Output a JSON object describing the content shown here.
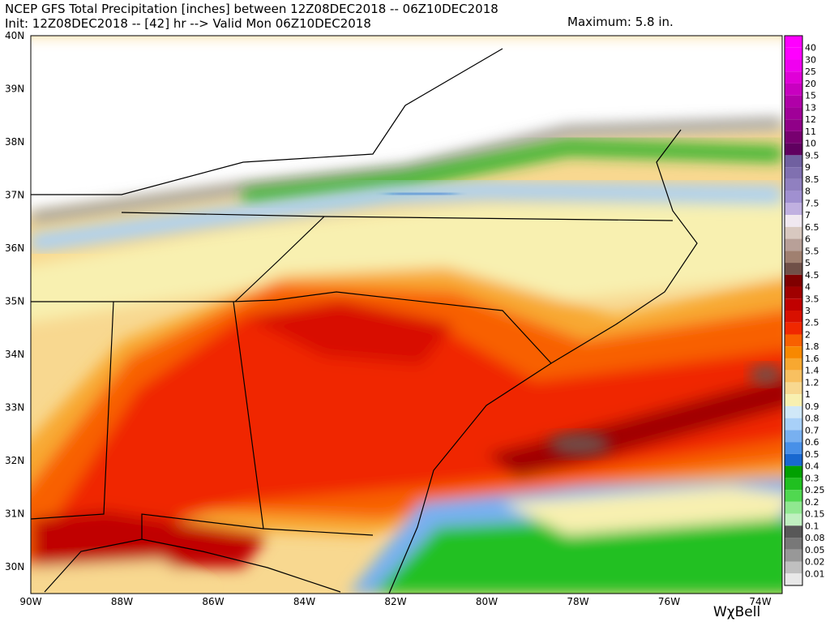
{
  "header": {
    "title": "NCEP GFS Total Precipitation [inches] between 12Z08DEC2018 -- 06Z10DEC2018",
    "subtitle": "Init: 12Z08DEC2018 -- [42] hr --> Valid Mon 06Z10DEC2018",
    "maximum": "Maximum: 5.8 in."
  },
  "latitude_labels": [
    "40N",
    "39N",
    "38N",
    "37N",
    "36N",
    "35N",
    "34N",
    "33N",
    "32N",
    "31N",
    "30N"
  ],
  "longitude_labels": [
    "90W",
    "88W",
    "86W",
    "84W",
    "82W",
    "80W",
    "78W",
    "76W",
    "74W"
  ],
  "legend": {
    "levels": [
      {
        "label": "40",
        "color": "#ff00ff"
      },
      {
        "label": "30",
        "color": "#f000f0"
      },
      {
        "label": "25",
        "color": "#e000d8"
      },
      {
        "label": "20",
        "color": "#c800c0"
      },
      {
        "label": "15",
        "color": "#b000a8"
      },
      {
        "label": "13",
        "color": "#a00098"
      },
      {
        "label": "12",
        "color": "#900088"
      },
      {
        "label": "11",
        "color": "#780070"
      },
      {
        "label": "10",
        "color": "#600060"
      },
      {
        "label": "9.5",
        "color": "#7060a0"
      },
      {
        "label": "9",
        "color": "#8070b0"
      },
      {
        "label": "8.5",
        "color": "#9080c0"
      },
      {
        "label": "8",
        "color": "#a090d0"
      },
      {
        "label": "7.5",
        "color": "#c0b0e0"
      },
      {
        "label": "7",
        "color": "#f0e8f0"
      },
      {
        "label": "6.5",
        "color": "#d8c8c0"
      },
      {
        "label": "6",
        "color": "#b8a098"
      },
      {
        "label": "5.5",
        "color": "#a08070"
      },
      {
        "label": "5",
        "color": "#705048"
      },
      {
        "label": "4.5",
        "color": "#800000"
      },
      {
        "label": "4",
        "color": "#a00000"
      },
      {
        "label": "3.5",
        "color": "#c00000"
      },
      {
        "label": "3",
        "color": "#d81000"
      },
      {
        "label": "2.5",
        "color": "#f02800"
      },
      {
        "label": "2",
        "color": "#f86000"
      },
      {
        "label": "1.8",
        "color": "#f88800"
      },
      {
        "label": "1.6",
        "color": "#f8a830"
      },
      {
        "label": "1.4",
        "color": "#f8c060"
      },
      {
        "label": "1.2",
        "color": "#f8d890"
      },
      {
        "label": "1",
        "color": "#f8f0b0"
      },
      {
        "label": "0.9",
        "color": "#d0e8f8"
      },
      {
        "label": "0.8",
        "color": "#a8d0f8"
      },
      {
        "label": "0.7",
        "color": "#78b0f0"
      },
      {
        "label": "0.6",
        "color": "#4890e8"
      },
      {
        "label": "0.5",
        "color": "#1868d0"
      },
      {
        "label": "0.4",
        "color": "#00a000"
      },
      {
        "label": "0.3",
        "color": "#20c020"
      },
      {
        "label": "0.25",
        "color": "#50d850"
      },
      {
        "label": "0.2",
        "color": "#90e890"
      },
      {
        "label": "0.15",
        "color": "#c0f0c0"
      },
      {
        "label": "0.1",
        "color": "#585858"
      },
      {
        "label": "0.08",
        "color": "#787878"
      },
      {
        "label": "0.05",
        "color": "#989898"
      },
      {
        "label": "0.02",
        "color": "#c0c0c0"
      },
      {
        "label": "0.01",
        "color": "#e8e8e8"
      }
    ]
  },
  "logo": "WχBell"
}
